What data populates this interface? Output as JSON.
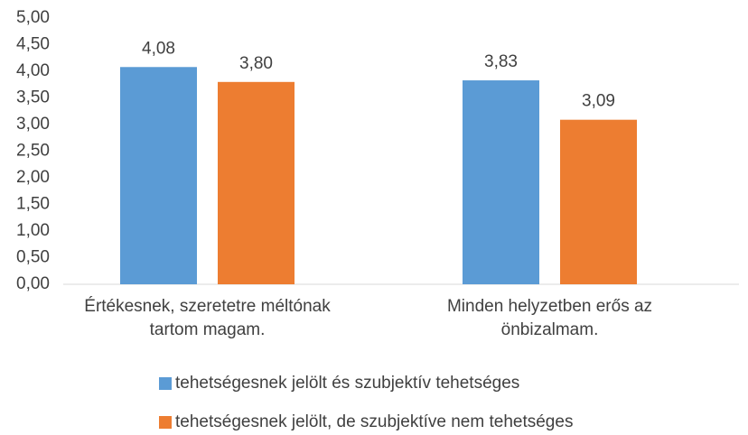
{
  "chart_data": {
    "type": "bar",
    "categories": [
      "Értékesnek, szeretetre méltónak tartom magam.",
      "Minden helyzetben erős az önbizalmam."
    ],
    "series": [
      {
        "name": "tehetségesnek jelölt és szubjektív tehetséges",
        "color": "#5b9bd5",
        "values": [
          4.08,
          3.83
        ],
        "value_labels": [
          "4,08",
          "3,83"
        ]
      },
      {
        "name": "tehetségesnek jelölt, de szubjektíve nem tehetséges",
        "color": "#ed7d31",
        "values": [
          3.8,
          3.09
        ],
        "value_labels": [
          "3,80",
          "3,09"
        ]
      }
    ],
    "ylim": [
      0,
      5
    ],
    "yticks": [
      {
        "value": 0,
        "label": "0,00"
      },
      {
        "value": 0.5,
        "label": "0,50"
      },
      {
        "value": 1,
        "label": "1,00"
      },
      {
        "value": 1.5,
        "label": "1,50"
      },
      {
        "value": 2,
        "label": "2,00"
      },
      {
        "value": 2.5,
        "label": "2,50"
      },
      {
        "value": 3,
        "label": "3,00"
      },
      {
        "value": 3.5,
        "label": "3,50"
      },
      {
        "value": 4,
        "label": "4,00"
      },
      {
        "value": 4.5,
        "label": "4,50"
      },
      {
        "value": 5,
        "label": "5,00"
      }
    ],
    "grid": false,
    "legend": "bottom"
  }
}
